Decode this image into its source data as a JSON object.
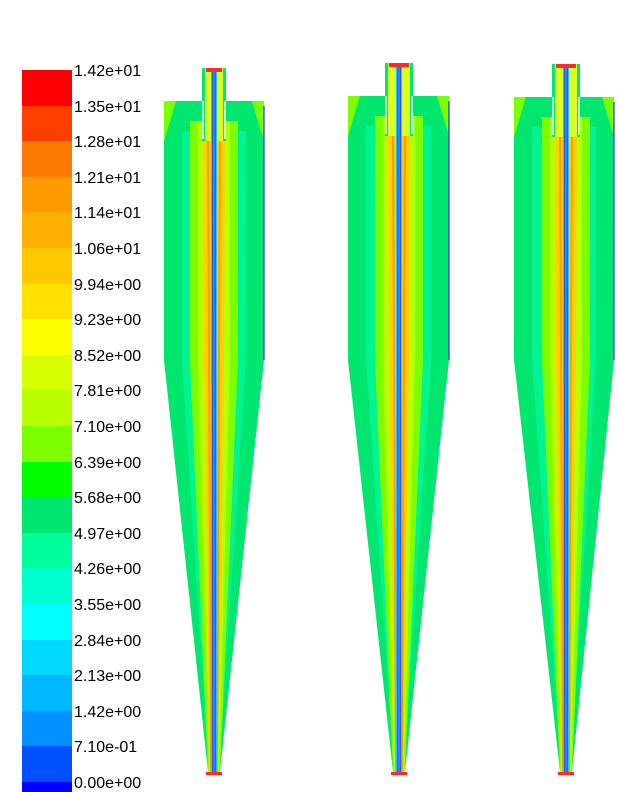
{
  "colorbar": {
    "labels": [
      "1.42e+01",
      "1.35e+01",
      "1.28e+01",
      "1.21e+01",
      "1.14e+01",
      "1.06e+01",
      "9.94e+00",
      "9.23e+00",
      "8.52e+00",
      "7.81e+00",
      "7.10e+00",
      "6.39e+00",
      "5.68e+00",
      "4.97e+00",
      "4.26e+00",
      "3.55e+00",
      "2.84e+00",
      "2.13e+00",
      "1.42e+00",
      "7.10e-01",
      "0.00e+00"
    ],
    "colors": [
      "#ff0000",
      "#ff3f00",
      "#ff7a00",
      "#ff9a00",
      "#ffb000",
      "#ffc800",
      "#ffe000",
      "#ffff00",
      "#d8ff00",
      "#b8ff00",
      "#7cff00",
      "#00ff00",
      "#00e66e",
      "#00ff9c",
      "#00ffd0",
      "#00ffff",
      "#00d8ff",
      "#00b8ff",
      "#0090ff",
      "#0050ff",
      "#0000ff"
    ],
    "min": 0,
    "max": 14.2
  },
  "contours": {
    "count": 3,
    "palette": {
      "inlet_top_cap": "#ff2a2a",
      "core_outer": "#ffd000",
      "core_mid": "#dcff20",
      "core_inner": "#ff9a00",
      "axis_blue": "#0000ff",
      "axis_cyan": "#00d8ff",
      "body_green": "#00e66e",
      "body_teal": "#00ffb0",
      "wall_lime": "#7cff00",
      "wall_yellowgreen": "#b8ff00"
    }
  }
}
